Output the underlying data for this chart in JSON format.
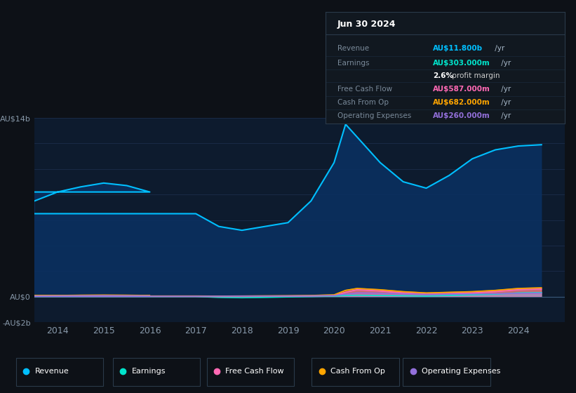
{
  "background_color": "#0d1117",
  "plot_bg_color": "#0d1b2e",
  "title": "Jun 30 2024",
  "years": [
    2013.5,
    2014.0,
    2014.5,
    2015.0,
    2015.5,
    2016.0,
    216.5,
    2017.0,
    2017.5,
    2018.0,
    2018.5,
    2019.0,
    2019.5,
    2020.0,
    2020.25,
    2020.5,
    2021.0,
    2021.5,
    2022.0,
    2022.5,
    2023.0,
    2023.5,
    2024.0,
    2024.5
  ],
  "revenue": [
    7.5,
    8.2,
    8.6,
    8.9,
    8.7,
    8.2,
    7.5,
    6.5,
    5.5,
    5.2,
    5.5,
    5.8,
    7.5,
    10.5,
    13.5,
    12.5,
    10.5,
    9.0,
    8.5,
    9.5,
    10.8,
    11.5,
    11.8,
    11.9
  ],
  "earnings": [
    0.05,
    0.06,
    0.07,
    0.08,
    0.06,
    0.04,
    0.02,
    0.01,
    -0.05,
    -0.08,
    -0.05,
    -0.02,
    0.01,
    0.05,
    0.1,
    0.12,
    0.1,
    0.08,
    0.05,
    0.1,
    0.15,
    0.2,
    0.3,
    0.32
  ],
  "free_cash_flow": [
    0.05,
    0.07,
    0.08,
    0.09,
    0.07,
    0.05,
    0.03,
    0.02,
    0.01,
    0.02,
    0.03,
    0.04,
    0.05,
    0.08,
    0.35,
    0.55,
    0.45,
    0.3,
    0.2,
    0.25,
    0.3,
    0.4,
    0.55,
    0.6
  ],
  "cash_from_op": [
    0.08,
    0.1,
    0.12,
    0.13,
    0.12,
    0.1,
    0.08,
    0.06,
    0.05,
    0.06,
    0.07,
    0.08,
    0.1,
    0.15,
    0.5,
    0.65,
    0.55,
    0.4,
    0.3,
    0.35,
    0.4,
    0.5,
    0.65,
    0.7
  ],
  "op_expenses": [
    0.05,
    0.06,
    0.07,
    0.08,
    0.07,
    0.06,
    0.05,
    0.04,
    0.04,
    0.05,
    0.05,
    0.06,
    0.07,
    0.1,
    0.2,
    0.3,
    0.28,
    0.22,
    0.18,
    0.2,
    0.22,
    0.24,
    0.26,
    0.28
  ],
  "ylim": [
    -2.0,
    14.0
  ],
  "yticks": [
    -2.0,
    0.0,
    2.0,
    4.0,
    6.0,
    8.0,
    10.0,
    12.0,
    14.0
  ],
  "ytick_labels": [
    "-AU$2b",
    "AU$0",
    "",
    "",
    "",
    "",
    "",
    "",
    "AU$14b"
  ],
  "xlim": [
    2013.5,
    2025.0
  ],
  "xticks": [
    2014,
    2015,
    2016,
    2017,
    2018,
    2019,
    2020,
    2021,
    2022,
    2023,
    2024
  ],
  "revenue_color": "#00bfff",
  "earnings_color": "#00e5cc",
  "fcf_color": "#ff69b4",
  "cfop_color": "#ffa500",
  "opex_color": "#9370db",
  "grid_color": "#1e3050",
  "revenue_fill": "#0a3060",
  "info_title": "Jun 30 2024",
  "info_rows": [
    {
      "label": "Revenue",
      "value": "AU$11.800b /yr",
      "color": "#00bfff"
    },
    {
      "label": "Earnings",
      "value": "AU$303.000m /yr",
      "color": "#00e5cc"
    },
    {
      "label": "",
      "value": "2.6% profit margin",
      "color": "#ffffff",
      "bold": "2.6%"
    },
    {
      "label": "Free Cash Flow",
      "value": "AU$587.000m /yr",
      "color": "#ff69b4"
    },
    {
      "label": "Cash From Op",
      "value": "AU$682.000m /yr",
      "color": "#ffa500"
    },
    {
      "label": "Operating Expenses",
      "value": "AU$260.000m /yr",
      "color": "#9370db"
    }
  ],
  "legend_items": [
    {
      "label": "Revenue",
      "color": "#00bfff"
    },
    {
      "label": "Earnings",
      "color": "#00e5cc"
    },
    {
      "label": "Free Cash Flow",
      "color": "#ff69b4"
    },
    {
      "label": "Cash From Op",
      "color": "#ffa500"
    },
    {
      "label": "Operating Expenses",
      "color": "#9370db"
    }
  ]
}
